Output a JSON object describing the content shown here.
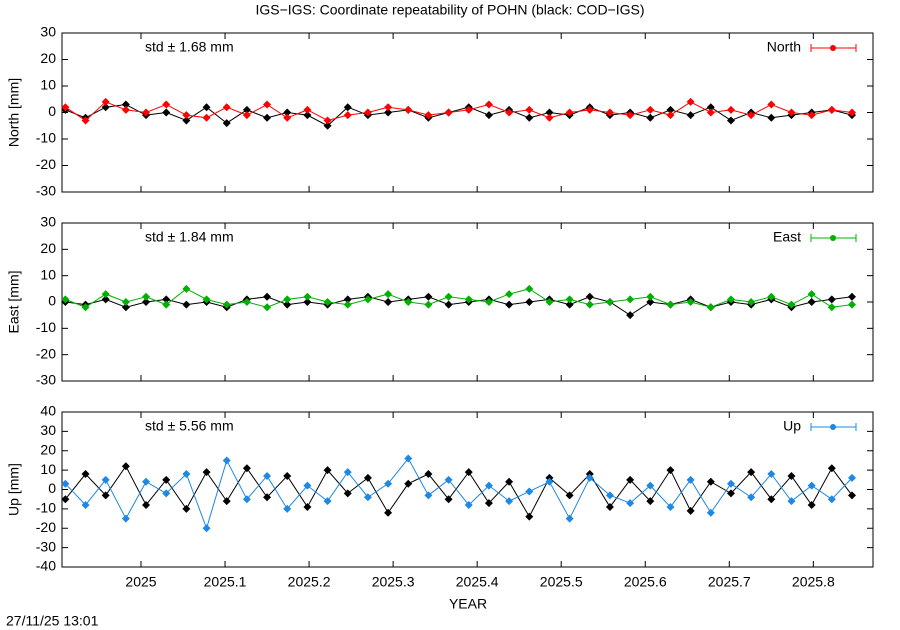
{
  "timestamp": "27/11/25 13:01",
  "chart_data": [
    {
      "type": "line",
      "title": "IGS−IGS: Coordinate repeatability of POHN (black: COD−IGS)",
      "ylabel": "North [mm]",
      "annotation": "std ± 1.68 mm",
      "annotation_color": "#ff0000",
      "xlim": [
        2024.906,
        2025.871
      ],
      "ylim": [
        -30,
        30
      ],
      "yticks": [
        -30,
        -20,
        -10,
        0,
        10,
        20,
        30
      ],
      "x": [
        2024.91,
        2024.934,
        2024.958,
        2024.982,
        2025.006,
        2025.03,
        2025.054,
        2025.078,
        2025.102,
        2025.126,
        2025.15,
        2025.174,
        2025.198,
        2025.222,
        2025.246,
        2025.27,
        2025.294,
        2025.318,
        2025.342,
        2025.366,
        2025.39,
        2025.414,
        2025.438,
        2025.462,
        2025.486,
        2025.51,
        2025.534,
        2025.558,
        2025.582,
        2025.606,
        2025.63,
        2025.654,
        2025.678,
        2025.702,
        2025.726,
        2025.75,
        2025.774,
        2025.798,
        2025.822,
        2025.846
      ],
      "series": [
        {
          "color": "#000000",
          "values": [
            1,
            -2,
            2,
            3,
            -1,
            0,
            -3,
            2,
            -4,
            1,
            -2,
            0,
            -1,
            -5,
            2,
            -1,
            0,
            1,
            -2,
            0,
            2,
            -1,
            1,
            -2,
            0,
            -1,
            2,
            -1,
            0,
            -2,
            1,
            -1,
            2,
            -3,
            0,
            -2,
            -1,
            0,
            1,
            -1
          ]
        },
        {
          "name": "North",
          "color": "#ff0000",
          "values": [
            2,
            -3,
            4,
            1,
            0,
            3,
            -1,
            -2,
            2,
            -1,
            3,
            -2,
            1,
            -3,
            -1,
            0,
            2,
            1,
            -1,
            0,
            1,
            3,
            0,
            1,
            -2,
            0,
            1,
            0,
            -1,
            1,
            -1,
            4,
            0,
            1,
            -1,
            3,
            0,
            -1,
            1,
            0
          ]
        }
      ]
    },
    {
      "type": "line",
      "ylabel": "East [mm]",
      "annotation": "std ± 1.84 mm",
      "annotation_color": "#00b000",
      "xlim": [
        2024.906,
        2025.871
      ],
      "ylim": [
        -30,
        30
      ],
      "yticks": [
        -30,
        -20,
        -10,
        0,
        10,
        20,
        30
      ],
      "x": [
        2024.91,
        2024.934,
        2024.958,
        2024.982,
        2025.006,
        2025.03,
        2025.054,
        2025.078,
        2025.102,
        2025.126,
        2025.15,
        2025.174,
        2025.198,
        2025.222,
        2025.246,
        2025.27,
        2025.294,
        2025.318,
        2025.342,
        2025.366,
        2025.39,
        2025.414,
        2025.438,
        2025.462,
        2025.486,
        2025.51,
        2025.534,
        2025.558,
        2025.582,
        2025.606,
        2025.63,
        2025.654,
        2025.678,
        2025.702,
        2025.726,
        2025.75,
        2025.774,
        2025.798,
        2025.822,
        2025.846
      ],
      "series": [
        {
          "color": "#000000",
          "values": [
            0,
            -1,
            1,
            -2,
            0,
            1,
            -1,
            0,
            -2,
            1,
            2,
            -1,
            0,
            -1,
            1,
            2,
            0,
            1,
            2,
            -1,
            0,
            1,
            -1,
            0,
            1,
            -1,
            2,
            0,
            -5,
            0,
            -1,
            1,
            -2,
            0,
            -1,
            1,
            -2,
            0,
            1,
            2
          ]
        },
        {
          "name": "East",
          "color": "#00b000",
          "values": [
            1,
            -2,
            3,
            0,
            2,
            -1,
            5,
            1,
            -1,
            0,
            -2,
            1,
            2,
            0,
            -1,
            1,
            3,
            0,
            -1,
            2,
            1,
            0,
            3,
            5,
            0,
            1,
            -1,
            0,
            1,
            2,
            -1,
            0,
            -2,
            1,
            0,
            2,
            -1,
            3,
            -2,
            -1
          ]
        }
      ]
    },
    {
      "type": "line",
      "ylabel": "Up [mm]",
      "xlabel": "YEAR",
      "annotation": "std ± 5.56 mm",
      "annotation_color": "#1e88e5",
      "xlim": [
        2024.906,
        2025.871
      ],
      "ylim": [
        -40,
        40
      ],
      "yticks": [
        -40,
        -30,
        -20,
        -10,
        0,
        10,
        20,
        30,
        40
      ],
      "xticks": [
        2025,
        2025.1,
        2025.2,
        2025.3,
        2025.4,
        2025.5,
        2025.6,
        2025.7,
        2025.8
      ],
      "x": [
        2024.91,
        2024.934,
        2024.958,
        2024.982,
        2025.006,
        2025.03,
        2025.054,
        2025.078,
        2025.102,
        2025.126,
        2025.15,
        2025.174,
        2025.198,
        2025.222,
        2025.246,
        2025.27,
        2025.294,
        2025.318,
        2025.342,
        2025.366,
        2025.39,
        2025.414,
        2025.438,
        2025.462,
        2025.486,
        2025.51,
        2025.534,
        2025.558,
        2025.582,
        2025.606,
        2025.63,
        2025.654,
        2025.678,
        2025.702,
        2025.726,
        2025.75,
        2025.774,
        2025.798,
        2025.822,
        2025.846
      ],
      "series": [
        {
          "color": "#000000",
          "values": [
            -5,
            8,
            -3,
            12,
            -8,
            5,
            -10,
            9,
            -6,
            11,
            -4,
            7,
            -9,
            10,
            -2,
            6,
            -12,
            3,
            8,
            -5,
            9,
            -7,
            4,
            -14,
            6,
            -3,
            8,
            -9,
            5,
            -6,
            10,
            -11,
            4,
            -2,
            9,
            -5,
            7,
            -8,
            11,
            -3
          ]
        },
        {
          "name": "Up",
          "color": "#1e88e5",
          "values": [
            3,
            -8,
            5,
            -15,
            4,
            -2,
            8,
            -20,
            15,
            -5,
            7,
            -10,
            2,
            -6,
            9,
            -4,
            3,
            16,
            -3,
            5,
            -8,
            2,
            -6,
            -1,
            4,
            -15,
            6,
            -3,
            -7,
            2,
            -9,
            5,
            -12,
            3,
            -4,
            8,
            -6,
            2,
            -5,
            6
          ]
        }
      ]
    }
  ]
}
